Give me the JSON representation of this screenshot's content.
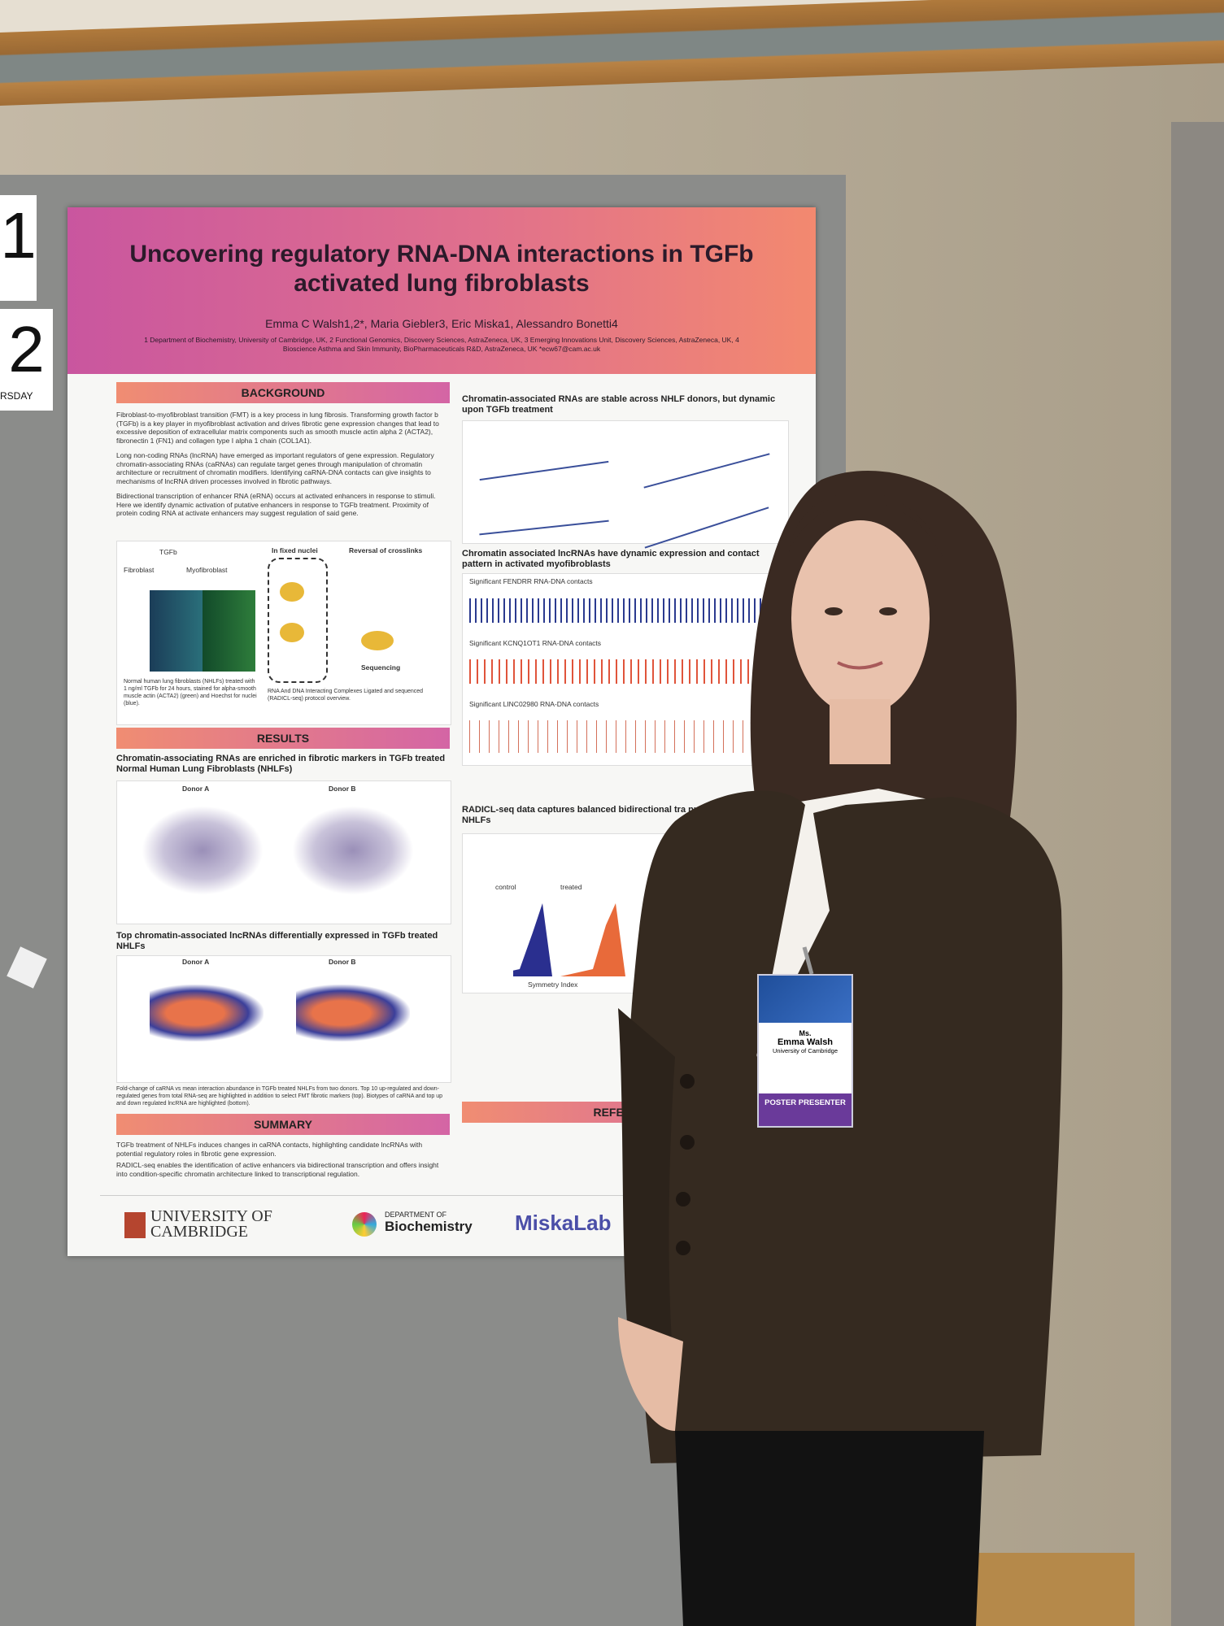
{
  "board_cards": [
    "1",
    "2",
    "RSDAY"
  ],
  "poster": {
    "title": "Uncovering regulatory RNA-DNA interactions in TGFb activated lung fibroblasts",
    "authors": "Emma C Walsh1,2*, Maria Giebler3, Eric Miska1, Alessandro Bonetti4",
    "affiliations": "1 Department of Biochemistry, University of Cambridge, UK, 2 Functional Genomics, Discovery Sciences, AstraZeneca, UK, 3 Emerging Innovations Unit, Discovery Sciences, AstraZeneca, UK, 4 Bioscience Asthma and Skin Immunity, BioPharmaceuticals R&D, AstraZeneca, UK *ecw67@cam.ac.uk",
    "left": {
      "background_heading": "BACKGROUND",
      "background_bullets": [
        "Fibroblast-to-myofibroblast transition (FMT) is a key process in lung fibrosis. Transforming growth factor b (TGFb) is a key player in myofibroblast activation and drives fibrotic gene expression changes that lead to excessive deposition of extracellular matrix components such as smooth muscle actin alpha 2 (ACTA2), fibronectin 1 (FN1) and collagen type I alpha 1 chain (COL1A1).",
        "Long non-coding RNAs (lncRNA) have emerged as important regulators of gene expression. Regulatory chromatin-associating RNAs (caRNAs) can regulate target genes through manipulation of chromatin architecture or recruitment of chromatin modifiers. Identifying caRNA-DNA contacts can give insights to mechanisms of lncRNA driven processes involved in fibrotic pathways.",
        "Bidirectional transcription of enhancer RNA (eRNA) occurs at activated enhancers in response to stimuli. Here we identify dynamic activation of putative enhancers in response to TGFb treatment. Proximity of protein coding RNA at activate enhancers may suggest regulation of said gene."
      ],
      "figure_labels": [
        "Fibroblast",
        "TGFb",
        "Myofibroblast",
        "In fixed nuclei",
        "Reversal of crosslinks",
        "Sequencing"
      ],
      "figure_caption": "Normal human lung fibroblasts (NHLFs) treated with 1 ng/ml TGFb for 24 hours, stained for alpha-smooth muscle actin (ACTA2) (green) and Hoechst for nuclei (blue).",
      "radicl_caption": "RNA And DNA Interacting Complexes Ligated and sequenced (RADICL-seq) protocol overview.",
      "results_heading": "RESULTS",
      "results_1": "Chromatin-associating RNAs are enriched in fibrotic markers in TGFb treated Normal Human Lung Fibroblasts (NHLFs)",
      "donors": [
        "Donor A",
        "Donor B"
      ],
      "results_2": "Top chromatin-associated lncRNAs differentially expressed in TGFb treated NHLFs",
      "results_2_caption": "Fold-change of caRNA vs mean interaction abundance in TGFb treated NHLFs from two donors. Top 10 up-regulated and down-regulated genes from total RNA-seq are highlighted in addition to select FMT fibrotic markers (top). Biotypes of caRNA and top up and down regulated lncRNA are highlighted (bottom).",
      "summary_heading": "SUMMARY",
      "summary_bullets": [
        "TGFb treatment of NHLFs induces changes in caRNA contacts, highlighting candidate lncRNAs with potential regulatory roles in fibrotic gene expression.",
        "RADICL-seq enables the identification of active enhancers via bidirectional transcription and offers insight into condition-specific chromatin architecture linked to transcriptional regulation."
      ]
    },
    "right": {
      "heading_1": "Chromatin-associated RNAs are stable across NHLF donors, but dynamic upon TGFb treatment",
      "heading_2": "Chromatin associated lncRNAs have dynamic expression and contact pattern in activated myofibroblasts",
      "tracks": [
        "Significant FENDRR RNA-DNA contacts",
        "Significant KCNQ1OT1 RNA-DNA contacts",
        "Significant LINC02980 RNA-DNA contacts"
      ],
      "heading_3": "RADICL-seq data captures balanced bidirectional tra putative enhancers in NHLFs",
      "histogram_labels": [
        "control",
        "treated",
        "Symmetry Index"
      ],
      "references_heading": "REFERENC"
    },
    "footer": [
      "UNIVERSITY OF",
      "CAMBRIDGE",
      "DEPARTMENT OF",
      "Biochemistry",
      "MiskaLab"
    ]
  },
  "badge": {
    "honorific": "Ms.",
    "name": "Emma Walsh",
    "affiliation": "University of Cambridge",
    "role": "POSTER PRESENTER"
  }
}
